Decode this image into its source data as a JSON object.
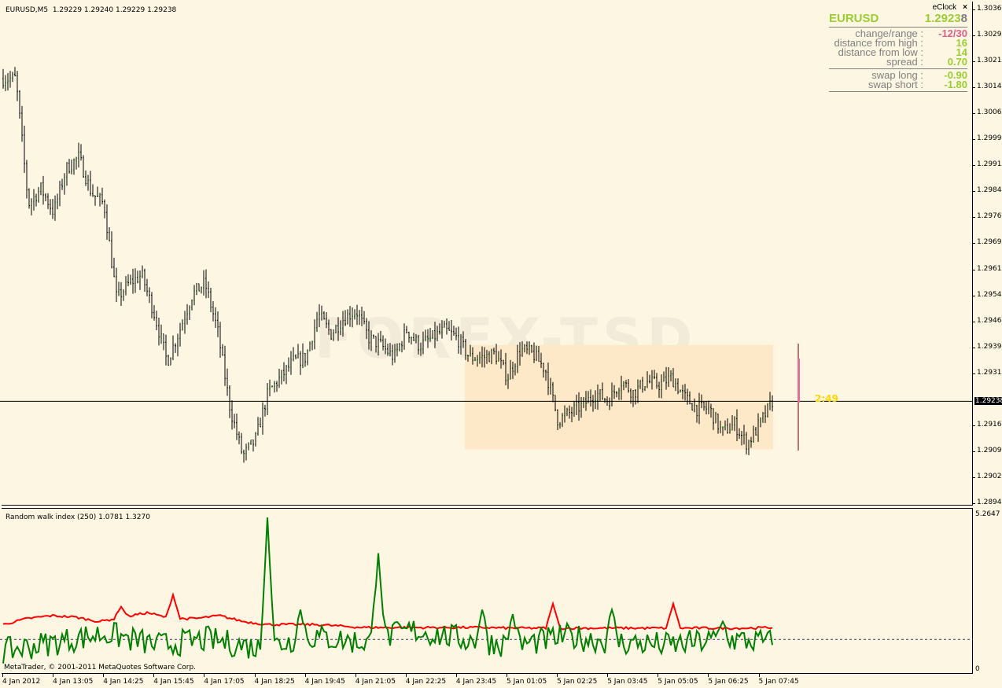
{
  "chart_header": "EURUSD,M5  1.29229 1.29240 1.29229 1.29238",
  "eclock": {
    "title": "eClock",
    "close": "×",
    "symbol": "EURUSD",
    "price_main": "1.2923",
    "price_last": "8",
    "rows": [
      {
        "label": "change/range :",
        "value": "-12/30",
        "color": "#e0608a"
      },
      {
        "label": "distance from high :",
        "value": "16"
      },
      {
        "label": "distance from low :",
        "value": "14"
      },
      {
        "label": "spread :",
        "value": "0.70"
      }
    ],
    "swap": [
      {
        "label": "swap long :",
        "value": "-0.90"
      },
      {
        "label": "swap short :",
        "value": "-1.80"
      }
    ]
  },
  "timer": "2:49",
  "watermark": "FOREX-TSD",
  "price_axis": [
    "1.30365",
    "1.30290",
    "1.30215",
    "1.30140",
    "1.30065",
    "1.29990",
    "1.29915",
    "1.29840",
    "1.29765",
    "1.29690",
    "1.29615",
    "1.29540",
    "1.29465",
    "1.29390",
    "1.29315",
    "1.29238",
    "1.29165",
    "1.29095",
    "1.29020",
    "1.28945"
  ],
  "current_price": "1.29238",
  "price_range": [
    1.28945,
    1.30365
  ],
  "close_waypoints": [
    1.30166,
    1.30166,
    1.29805,
    1.2985,
    1.29782,
    1.29906,
    1.2994,
    1.29838,
    1.29805,
    1.29533,
    1.29578,
    1.29601,
    1.29488,
    1.29352,
    1.29443,
    1.29545,
    1.29578,
    1.29443,
    1.29217,
    1.29081,
    1.29126,
    1.29262,
    1.29307,
    1.29352,
    1.29364,
    1.29488,
    1.29432,
    1.29477,
    1.29499,
    1.2942,
    1.29398,
    1.29364,
    1.29443,
    1.29398,
    1.2942,
    1.29443,
    1.2942,
    1.29364,
    1.29364,
    1.29375,
    1.29307,
    1.29386,
    1.29375,
    1.2933,
    1.29183,
    1.29206,
    1.29228,
    1.29262,
    1.2924,
    1.29296,
    1.29262,
    1.29296,
    1.29285,
    1.29307,
    1.29251,
    1.29217,
    1.29217,
    1.29149,
    1.29172,
    1.29115,
    1.29172,
    1.29238
  ],
  "indicator": {
    "title": "Random walk index (250) 1.0781 1.3270",
    "max_label": "5.2647",
    "min_label": "0",
    "max": 5.2647,
    "level": 1.0,
    "red_baseline": [
      1.5,
      1.7,
      1.8,
      1.75,
      1.6,
      1.75,
      1.9,
      1.7,
      1.7,
      1.8,
      1.6,
      1.5,
      1.5,
      1.5,
      1.45,
      1.4,
      1.4,
      1.4,
      1.4,
      1.4,
      1.4,
      1.38,
      1.38,
      1.38,
      1.38,
      1.38,
      1.38,
      1.38,
      1.38,
      1.38,
      1.38,
      1.38,
      1.4
    ],
    "red_spikes": [
      {
        "bar": 50,
        "value": 2.1
      },
      {
        "bar": 72,
        "value": 2.5
      },
      {
        "bar": 233,
        "value": 2.2
      },
      {
        "bar": 284,
        "value": 2.2
      }
    ],
    "green_spikes": [
      {
        "bar": 112,
        "value": 5.1
      },
      {
        "bar": 159,
        "value": 3.9
      },
      {
        "bar": 126,
        "value": 2.0
      },
      {
        "bar": 203,
        "value": 2.0
      },
      {
        "bar": 216,
        "value": 1.85
      },
      {
        "bar": 258,
        "value": 2.0
      },
      {
        "bar": 305,
        "value": 1.6
      }
    ]
  },
  "copyright": "MetaTrader, © 2001-2011 MetaQuotes Software Corp.",
  "time_axis": [
    "4 Jan 2012",
    "4 Jan 13:05",
    "4 Jan 14:25",
    "4 Jan 15:45",
    "4 Jan 17:05",
    "4 Jan 18:25",
    "4 Jan 19:45",
    "4 Jan 21:05",
    "4 Jan 22:25",
    "4 Jan 23:45",
    "5 Jan 01:05",
    "5 Jan 02:25",
    "5 Jan 03:45",
    "5 Jan 05:05",
    "5 Jan 06:25",
    "5 Jan 07:45"
  ],
  "colors": {
    "bg": "#fdf6e3",
    "bull": "#008000",
    "bear": "#000000",
    "rwi_high": "#ff0000",
    "rwi_low": "#008000",
    "range_box": "#fde8c8",
    "last_bar": "#e0709a",
    "timer": "#ffd700"
  }
}
